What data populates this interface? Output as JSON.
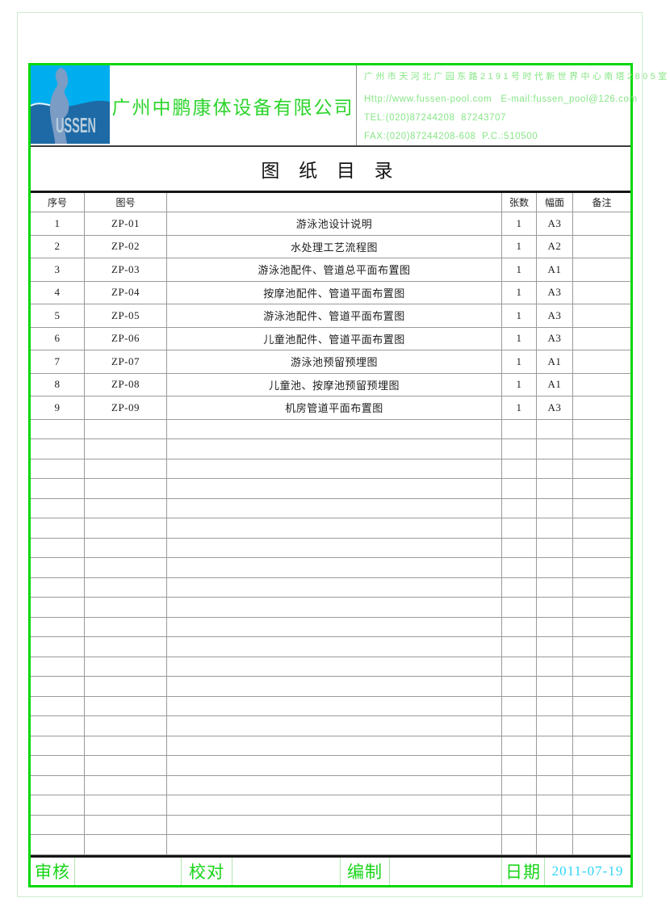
{
  "colors": {
    "border_green": "#09d809",
    "company_green": "#2bd42b",
    "contact_green": "#87e687",
    "footer_label_green": "#17d417",
    "date_cyan": "#2ed4f7",
    "logo_top_cyan": "#00aeef",
    "logo_bottom_blue": "#1d6aa6",
    "logo_silhouette": "#7b9cc4",
    "pale_frame": "#cdeccd"
  },
  "header": {
    "logo": {
      "brand": "USSEN"
    },
    "company_name": "广州中鹏康体设备有限公司",
    "contact": {
      "address": "广州市天河北广园东路2191号时代新世界中心南塔2805室",
      "web_email": "Http://www.fussen-pool.com   E-mail:fussen_pool@126.com",
      "tel": "TEL:(020)87244208  87243707",
      "fax": "FAX:(020)87244208-608  P.C.:510500"
    }
  },
  "title": "图 纸 目 录",
  "table": {
    "headers": {
      "no": "序号",
      "drawing_no": "图号",
      "name": "",
      "sheets": "张数",
      "size": "幅面",
      "remark": "备注"
    },
    "rows": [
      {
        "no": "1",
        "code": "ZP-01",
        "name": "游泳池设计说明",
        "sheets": "1",
        "size": "A3",
        "remark": ""
      },
      {
        "no": "2",
        "code": "ZP-02",
        "name": "水处理工艺流程图",
        "sheets": "1",
        "size": "A2",
        "remark": ""
      },
      {
        "no": "3",
        "code": "ZP-03",
        "name": "游泳池配件、管道总平面布置图",
        "sheets": "1",
        "size": "A1",
        "remark": ""
      },
      {
        "no": "4",
        "code": "ZP-04",
        "name": "按摩池配件、管道平面布置图",
        "sheets": "1",
        "size": "A3",
        "remark": ""
      },
      {
        "no": "5",
        "code": "ZP-05",
        "name": "游泳池配件、管道平面布置图",
        "sheets": "1",
        "size": "A3",
        "remark": ""
      },
      {
        "no": "6",
        "code": "ZP-06",
        "name": "儿童池配件、管道平面布置图",
        "sheets": "1",
        "size": "A3",
        "remark": ""
      },
      {
        "no": "7",
        "code": "ZP-07",
        "name": "游泳池预留预埋图",
        "sheets": "1",
        "size": "A1",
        "remark": ""
      },
      {
        "no": "8",
        "code": "ZP-08",
        "name": "儿童池、按摩池预留预埋图",
        "sheets": "1",
        "size": "A1",
        "remark": ""
      },
      {
        "no": "9",
        "code": "ZP-09",
        "name": "机房管道平面布置图",
        "sheets": "1",
        "size": "A3",
        "remark": ""
      }
    ],
    "empty_rows": 22
  },
  "footer": {
    "review_label": "审核",
    "proof_label": "校对",
    "prepare_label": "编制",
    "date_label": "日期",
    "date_value": "2011-07-19"
  }
}
